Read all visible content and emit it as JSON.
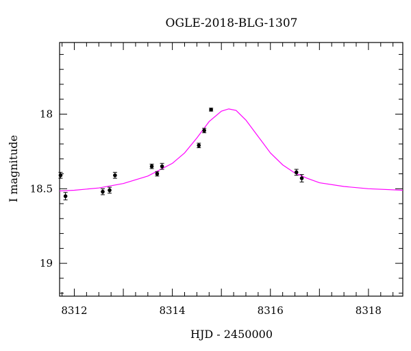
{
  "chart_data": {
    "type": "scatter",
    "title": "OGLE-2018-BLG-1307",
    "xlabel": "HJD - 2450000",
    "ylabel": "I magnitude",
    "xlim": [
      8311.7,
      8318.7
    ],
    "ylim": [
      19.22,
      17.52
    ],
    "y_inverted": true,
    "x_ticks": [
      8312,
      8314,
      8316,
      8318
    ],
    "x_tick_labels": [
      "8312",
      "8314",
      "8316",
      "8318"
    ],
    "y_ticks": [
      18,
      18.5,
      19
    ],
    "y_tick_labels": [
      "18",
      "18.5",
      "19"
    ],
    "grid": false,
    "points": [
      {
        "x": 8311.72,
        "y": 18.41,
        "err": 0.02
      },
      {
        "x": 8311.82,
        "y": 18.55,
        "err": 0.025
      },
      {
        "x": 8312.58,
        "y": 18.52,
        "err": 0.02
      },
      {
        "x": 8312.72,
        "y": 18.51,
        "err": 0.02
      },
      {
        "x": 8312.83,
        "y": 18.41,
        "err": 0.02
      },
      {
        "x": 8313.58,
        "y": 18.35,
        "err": 0.015
      },
      {
        "x": 8313.69,
        "y": 18.4,
        "err": 0.015
      },
      {
        "x": 8313.79,
        "y": 18.35,
        "err": 0.02
      },
      {
        "x": 8314.54,
        "y": 18.21,
        "err": 0.015
      },
      {
        "x": 8314.65,
        "y": 18.11,
        "err": 0.015
      },
      {
        "x": 8314.79,
        "y": 17.97,
        "err": 0.01
      },
      {
        "x": 8316.53,
        "y": 18.39,
        "err": 0.02
      },
      {
        "x": 8316.64,
        "y": 18.43,
        "err": 0.025
      }
    ],
    "model": {
      "name": "",
      "color": "#ff00ff",
      "x": [
        8311.7,
        8312.0,
        8312.5,
        8313.0,
        8313.5,
        8314.0,
        8314.25,
        8314.5,
        8314.75,
        8315.0,
        8315.15,
        8315.3,
        8315.5,
        8315.75,
        8316.0,
        8316.25,
        8316.5,
        8316.75,
        8317.0,
        8317.5,
        8318.0,
        8318.7
      ],
      "y": [
        18.515,
        18.51,
        18.495,
        18.465,
        18.415,
        18.33,
        18.26,
        18.16,
        18.05,
        17.98,
        17.965,
        17.975,
        18.04,
        18.15,
        18.26,
        18.34,
        18.395,
        18.43,
        18.46,
        18.485,
        18.5,
        18.51
      ]
    },
    "colors": {
      "points": "#000000",
      "model": "#ff00ff",
      "frame": "#000000"
    }
  }
}
